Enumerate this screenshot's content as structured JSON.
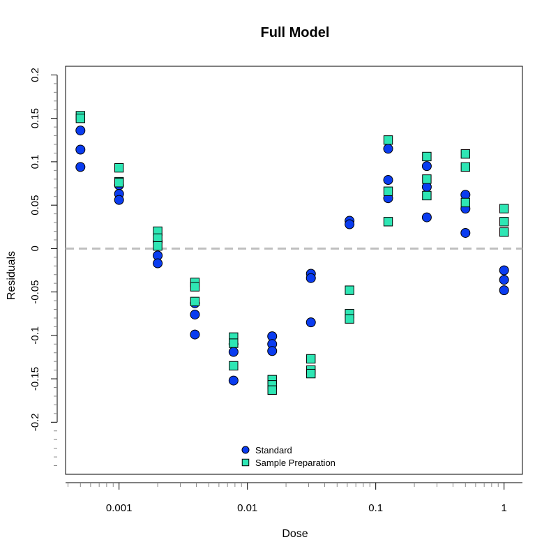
{
  "chart_data": {
    "type": "scatter",
    "title": "Full Model",
    "xlabel": "Dose",
    "ylabel": "Residuals",
    "x_scale": "log",
    "xlim": [
      0.000383,
      1.39
    ],
    "ylim": [
      -0.26,
      0.21
    ],
    "x_ticks": [
      0.001,
      0.01,
      0.1,
      1
    ],
    "x_tick_labels": [
      "0.001",
      "0.01",
      "0.1",
      "1"
    ],
    "y_ticks": [
      -0.2,
      -0.15,
      -0.1,
      -0.05,
      0,
      0.05,
      0.1,
      0.15,
      0.2
    ],
    "y_tick_labels": [
      "-0.2",
      "-0.15",
      "-0.1",
      "-0.05",
      "0",
      "0.05",
      "0.1",
      "0.15",
      "0.2"
    ],
    "reference_line": {
      "y": 0,
      "style": "dashed",
      "color": "#c0c0c0"
    },
    "grid": false,
    "legend": {
      "placement": "bottom-center"
    },
    "series": [
      {
        "name": "Standard",
        "marker": "circle",
        "color": "#0a3cf0",
        "points": [
          [
            0.0005,
            0.136
          ],
          [
            0.0005,
            0.114
          ],
          [
            0.0005,
            0.094
          ],
          [
            0.001,
            0.073
          ],
          [
            0.001,
            0.063
          ],
          [
            0.001,
            0.056
          ],
          [
            0.002,
            0.008
          ],
          [
            0.002,
            -0.008
          ],
          [
            0.002,
            -0.017
          ],
          [
            0.0039,
            -0.063
          ],
          [
            0.0039,
            -0.076
          ],
          [
            0.0039,
            -0.099
          ],
          [
            0.0078,
            -0.11
          ],
          [
            0.0078,
            -0.119
          ],
          [
            0.0078,
            -0.152
          ],
          [
            0.0156,
            -0.101
          ],
          [
            0.0156,
            -0.11
          ],
          [
            0.0156,
            -0.118
          ],
          [
            0.03125,
            -0.029
          ],
          [
            0.03125,
            -0.034
          ],
          [
            0.03125,
            -0.085
          ],
          [
            0.0625,
            0.032
          ],
          [
            0.0625,
            0.028
          ],
          [
            0.125,
            0.115
          ],
          [
            0.125,
            0.079
          ],
          [
            0.125,
            0.058
          ],
          [
            0.25,
            0.095
          ],
          [
            0.25,
            0.071
          ],
          [
            0.25,
            0.036
          ],
          [
            0.5,
            0.062
          ],
          [
            0.5,
            0.046
          ],
          [
            0.5,
            0.018
          ],
          [
            1,
            -0.025
          ],
          [
            1,
            -0.036
          ],
          [
            1,
            -0.048
          ]
        ]
      },
      {
        "name": "Sample Preparation",
        "marker": "square",
        "color": "#2ee6b4",
        "points": [
          [
            0.0005,
            0.153
          ],
          [
            0.0005,
            0.15
          ],
          [
            0.001,
            0.093
          ],
          [
            0.001,
            0.077
          ],
          [
            0.001,
            0.076
          ],
          [
            0.002,
            0.02
          ],
          [
            0.002,
            0.012
          ],
          [
            0.002,
            0.003
          ],
          [
            0.0039,
            -0.039
          ],
          [
            0.0039,
            -0.044
          ],
          [
            0.0039,
            -0.061
          ],
          [
            0.0078,
            -0.102
          ],
          [
            0.0078,
            -0.109
          ],
          [
            0.0078,
            -0.135
          ],
          [
            0.0156,
            -0.151
          ],
          [
            0.0156,
            -0.157
          ],
          [
            0.0156,
            -0.163
          ],
          [
            0.03125,
            -0.127
          ],
          [
            0.03125,
            -0.14
          ],
          [
            0.03125,
            -0.144
          ],
          [
            0.0625,
            -0.048
          ],
          [
            0.0625,
            -0.075
          ],
          [
            0.0625,
            -0.081
          ],
          [
            0.125,
            0.125
          ],
          [
            0.125,
            0.066
          ],
          [
            0.125,
            0.031
          ],
          [
            0.25,
            0.106
          ],
          [
            0.25,
            0.08
          ],
          [
            0.25,
            0.061
          ],
          [
            0.5,
            0.109
          ],
          [
            0.5,
            0.094
          ],
          [
            0.5,
            0.053
          ],
          [
            1,
            0.046
          ],
          [
            1,
            0.031
          ],
          [
            1,
            0.019
          ]
        ]
      }
    ]
  }
}
